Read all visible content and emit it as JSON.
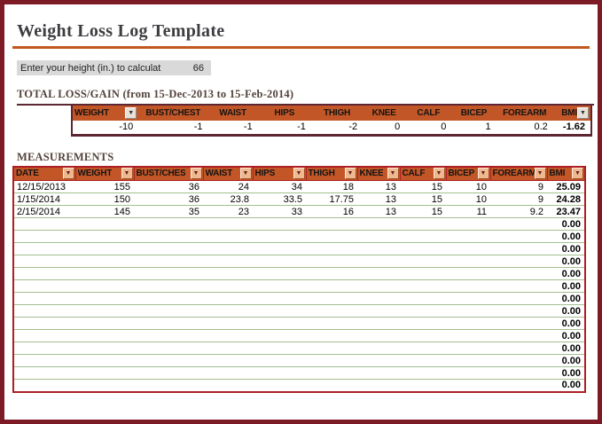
{
  "page": {
    "title": "Weight Loss Log Template"
  },
  "height_input": {
    "label": "Enter your height (in.) to calculat",
    "value": "66"
  },
  "total_section": {
    "heading": "TOTAL LOSS/GAIN (from 15-Dec-2013 to 15-Feb-2014)"
  },
  "totals_table": {
    "columns": [
      "WEIGHT",
      "BUST/CHEST",
      "WAIST",
      "HIPS",
      "THIGH",
      "KNEE",
      "CALF",
      "BICEP",
      "FOREARM",
      "BMI"
    ],
    "values": [
      "-10",
      "-1",
      "-1",
      "-1",
      "-2",
      "0",
      "0",
      "1",
      "0.2",
      "-1.62"
    ],
    "filter_dropdown_columns": [
      "WEIGHT",
      "BMI"
    ]
  },
  "measurements_section": {
    "heading": "MEASUREMENTS"
  },
  "measurements_table": {
    "columns": [
      "DATE",
      "WEIGHT",
      "BUST/CHES",
      "WAIST",
      "HIPS",
      "THIGH",
      "KNEE",
      "CALF",
      "BICEP",
      "FOREARM",
      "BMI"
    ],
    "rows": [
      [
        "12/15/2013",
        "155",
        "36",
        "24",
        "34",
        "18",
        "13",
        "15",
        "10",
        "9",
        "25.09"
      ],
      [
        "1/15/2014",
        "150",
        "36",
        "23.8",
        "33.5",
        "17.75",
        "13",
        "15",
        "10",
        "9",
        "24.28"
      ],
      [
        "2/15/2014",
        "145",
        "35",
        "23",
        "33",
        "16",
        "13",
        "15",
        "11",
        "9.2",
        "23.47"
      ]
    ],
    "empty_row_count": 14,
    "empty_row_bmi": "0.00"
  },
  "icons": {
    "filter_dropdown": "▼"
  },
  "colors": {
    "page_border": "#7C1A26",
    "accent_orange": "#C25627",
    "title_rule_orange": "#C0591F",
    "table1_border_maroon": "#5E2633",
    "table2_border_red": "#AD1F24",
    "row_line_green": "#A3BE8E",
    "input_bg_gray": "#D9D9D9",
    "heading_brown": "#53433C",
    "title_gray": "#3E3E42"
  }
}
